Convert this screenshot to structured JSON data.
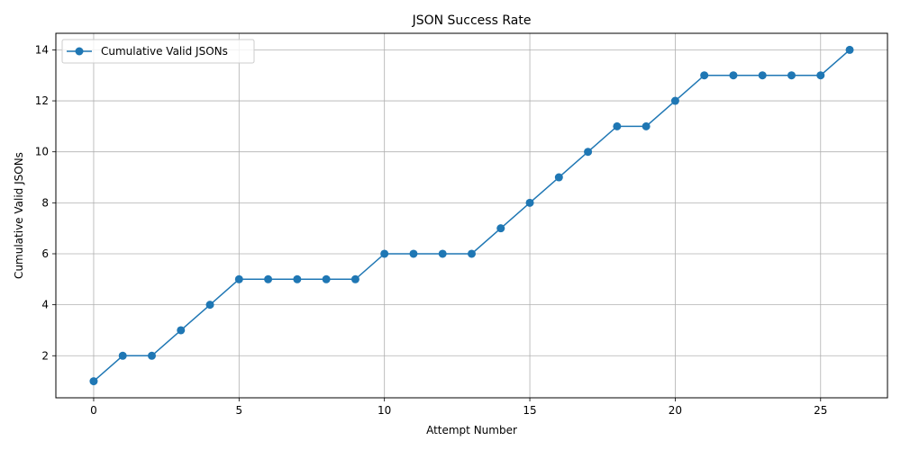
{
  "chart_data": {
    "type": "line",
    "title": "JSON Success Rate",
    "xlabel": "Attempt Number",
    "ylabel": "Cumulative Valid JSONs",
    "xlim": [
      -1.3,
      27.3
    ],
    "ylim": [
      0.35,
      14.65
    ],
    "xticks": [
      0,
      5,
      10,
      15,
      20,
      25
    ],
    "yticks": [
      2,
      4,
      6,
      8,
      10,
      12,
      14
    ],
    "grid": true,
    "legend_position": "upper-left",
    "series": [
      {
        "name": "Cumulative Valid JSONs",
        "color": "#1f77b4",
        "marker": "circle",
        "x": [
          0,
          1,
          2,
          3,
          4,
          5,
          6,
          7,
          8,
          9,
          10,
          11,
          12,
          13,
          14,
          15,
          16,
          17,
          18,
          19,
          20,
          21,
          22,
          23,
          24,
          25,
          26
        ],
        "y": [
          1,
          2,
          2,
          3,
          4,
          5,
          5,
          5,
          5,
          5,
          6,
          6,
          6,
          6,
          7,
          8,
          9,
          10,
          11,
          11,
          12,
          13,
          13,
          13,
          13,
          13,
          14
        ]
      }
    ]
  }
}
